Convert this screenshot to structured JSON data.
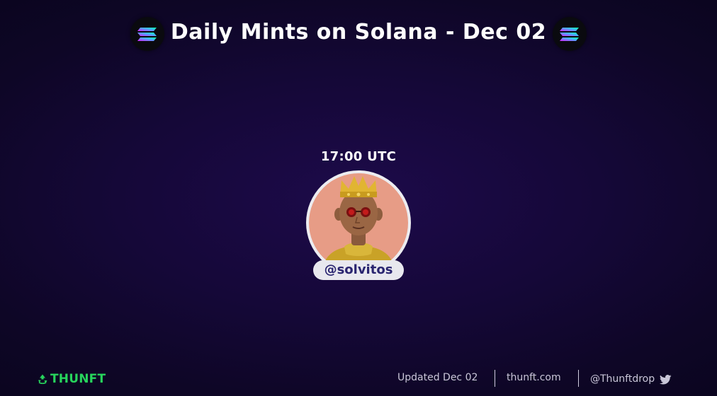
{
  "header": {
    "title": "Daily Mints on Solana - Dec 02",
    "left_logo": "solana-icon",
    "right_logo": "solana-icon"
  },
  "mint": {
    "time": "17:00 UTC",
    "handle": "@solvitos",
    "avatar": "crowned-character-avatar"
  },
  "footer": {
    "brand": "THUNFT",
    "brand_icon": "recycle-icon",
    "updated": "Updated Dec 02",
    "site": "thunft.com",
    "twitter_handle": "@Thunftdrop",
    "twitter_icon": "twitter-icon"
  },
  "colors": {
    "background": "#150838",
    "brand_green": "#27d45c",
    "handle_text": "#2a2570",
    "solana_gradient": [
      "#00ffa3",
      "#03e1ff",
      "#dc1fff"
    ]
  }
}
